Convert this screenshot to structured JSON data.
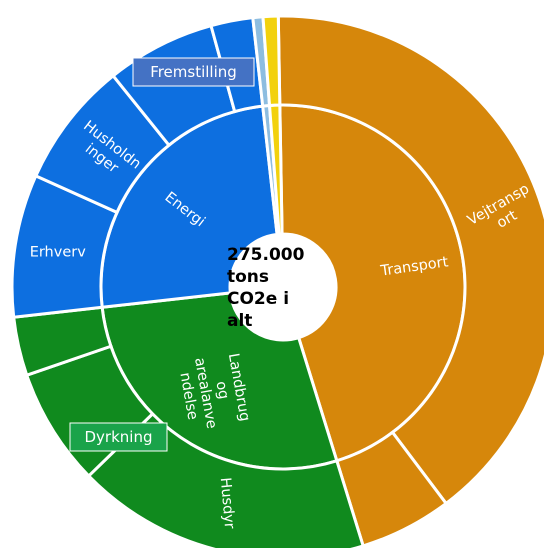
{
  "chart_data": {
    "type": "sunburst",
    "center_label": [
      "275.000",
      "tons",
      "CO2e i",
      "alt"
    ],
    "inner": [
      {
        "name": "Transport",
        "value": 45.5,
        "color": "#d6870b",
        "label_lines": [
          "Transport"
        ]
      },
      {
        "name": "Landbrug og arealanvendelse",
        "value": 28.0,
        "color": "#108a1e",
        "label_lines": [
          "Landbrug",
          "og",
          "arealanve",
          "ndelse"
        ]
      },
      {
        "name": "Energi",
        "value": 25.0,
        "color": "#0d6fe0",
        "label_lines": [
          "Energi"
        ]
      },
      {
        "name": "",
        "value": 0.6,
        "color": "#8dbde0",
        "label_lines": []
      },
      {
        "name": "",
        "value": 0.9,
        "color": "#f2d10d",
        "label_lines": []
      }
    ],
    "outer": [
      {
        "parent": "Transport",
        "name": "Vejtransport",
        "value": 40.0,
        "color": "#d6870b",
        "label_lines": [
          "Vejtransp",
          "ort"
        ]
      },
      {
        "parent": "Transport",
        "name": "",
        "value": 5.5,
        "color": "#d6870b",
        "label_lines": []
      },
      {
        "parent": "Landbrug og arealanvendelse",
        "name": "Husdyr",
        "value": 17.5,
        "color": "#108a1e",
        "label_lines": [
          "Husdyr"
        ]
      },
      {
        "parent": "Landbrug og arealanvendelse",
        "name": "Dyrkning",
        "value": 7.0,
        "color": "#108a1e",
        "label_lines": [],
        "box_label": "Dyrkning",
        "box_color": "#1aa34a"
      },
      {
        "parent": "Landbrug og arealanvendelse",
        "name": "",
        "value": 3.5,
        "color": "#108a1e",
        "label_lines": []
      },
      {
        "parent": "Energi",
        "name": "Erhverv",
        "value": 8.5,
        "color": "#0d6fe0",
        "label_lines": [
          "Erhverv"
        ]
      },
      {
        "parent": "Energi",
        "name": "Husholdninger",
        "value": 7.5,
        "color": "#0d6fe0",
        "label_lines": [
          "Husholdn",
          "inger"
        ]
      },
      {
        "parent": "Energi",
        "name": "Fremstilling",
        "value": 6.5,
        "color": "#0d6fe0",
        "label_lines": [],
        "box_label": "Fremstilling",
        "box_color": "#4472c4"
      },
      {
        "parent": "Energi",
        "name": "",
        "value": 2.5,
        "color": "#0d6fe0",
        "label_lines": []
      },
      {
        "parent": "",
        "name": "",
        "value": 0.6,
        "color": "#8dbde0",
        "label_lines": []
      },
      {
        "parent": "",
        "name": "",
        "value": 0.9,
        "color": "#f2d10d",
        "label_lines": []
      }
    ]
  }
}
